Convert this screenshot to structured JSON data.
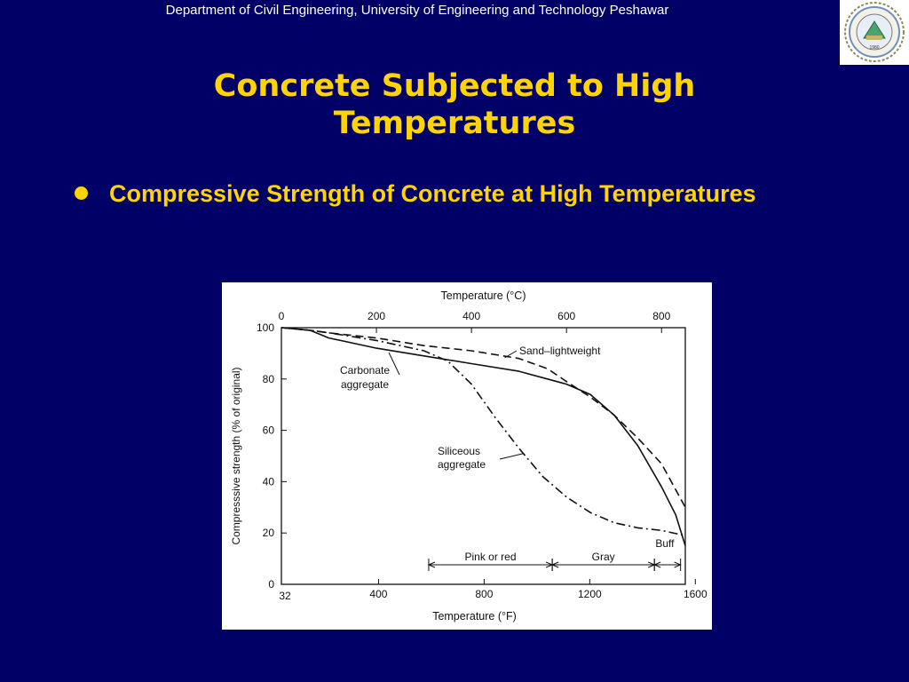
{
  "header": {
    "text": "Department of Civil Engineering, University of Engineering and Technology Peshawar"
  },
  "slide": {
    "title_line1": "Concrete Subjected to High",
    "title_line2": "Temperatures",
    "bullet": "Compressive Strength of Concrete at High Temperatures"
  },
  "logo": {
    "year_text": "1980"
  },
  "chart_data": {
    "type": "line",
    "xlabel_top": "Temperature (°C)",
    "xlabel_bottom": "Temperature (°F)",
    "ylabel": "Compresssive strength (% of original)",
    "xlim_c": [
      0,
      850
    ],
    "ylim": [
      0,
      100
    ],
    "x_ticks_c": [
      "0",
      "200",
      "400",
      "600",
      "800"
    ],
    "x_ticks_f": [
      "32",
      "400",
      "800",
      "1200",
      "1600"
    ],
    "y_ticks": [
      "0",
      "20",
      "40",
      "60",
      "80",
      "100"
    ],
    "series": [
      {
        "name": "Carbonate aggregate",
        "style": "solid",
        "x": [
          0,
          60,
          100,
          200,
          300,
          400,
          500,
          560,
          600,
          650,
          700,
          750,
          800,
          830,
          850
        ],
        "y": [
          100,
          99,
          96,
          92,
          89,
          86,
          83,
          80,
          78,
          74,
          66,
          54,
          38,
          27,
          15
        ]
      },
      {
        "name": "Sand-lightweight",
        "style": "dashed",
        "x": [
          0,
          60,
          100,
          200,
          300,
          400,
          500,
          560,
          600,
          650,
          700,
          750,
          800,
          850
        ],
        "y": [
          100,
          99,
          98,
          96,
          93,
          91,
          88,
          84,
          79,
          73,
          66,
          57,
          47,
          30
        ]
      },
      {
        "name": "Siliceous aggregate",
        "style": "dashdot",
        "x": [
          0,
          60,
          100,
          200,
          300,
          350,
          400,
          450,
          500,
          550,
          600,
          650,
          700,
          750,
          800,
          850
        ],
        "y": [
          100,
          99,
          98,
          95,
          91,
          87,
          78,
          65,
          53,
          42,
          34,
          28,
          24,
          22,
          21,
          19
        ]
      }
    ],
    "annotations": {
      "sand_lightweight": "Sand–lightweight",
      "carbonate_line1": "Carbonate",
      "carbonate_line2": "aggregate",
      "siliceous_line1": "Siliceous",
      "siliceous_line2": "aggregate"
    },
    "color_ranges": [
      {
        "label": "Pink or red",
        "from_c": 310,
        "to_c": 570
      },
      {
        "label": "Gray",
        "from_c": 570,
        "to_c": 785
      },
      {
        "label": "Buff",
        "from_c": 785,
        "to_c": 840
      }
    ]
  }
}
